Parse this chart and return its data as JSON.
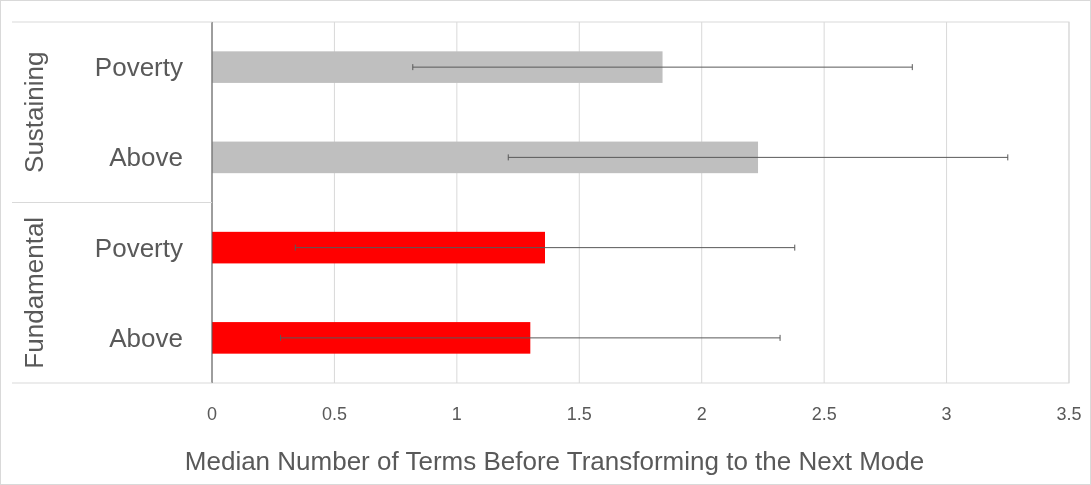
{
  "chart_data": {
    "type": "bar",
    "orientation": "horizontal",
    "xlabel": "Median Number of Terms Before Transforming to the Next Mode",
    "categories": [
      "Poverty",
      "Above",
      "Poverty",
      "Above"
    ],
    "values": [
      1.84,
      2.23,
      1.36,
      1.3
    ],
    "colors": [
      "#bfbfbf",
      "#bfbfbf",
      "#ff0000",
      "#ff0000"
    ],
    "errors": [
      1.02,
      1.02,
      1.02,
      1.02
    ],
    "annotations": [
      "Sustaining",
      "Fundamental"
    ],
    "xlim": [
      0,
      3.5
    ],
    "xticks": [
      0,
      0.5,
      1,
      1.5,
      2,
      2.5,
      3,
      3.5
    ],
    "grid": "x"
  }
}
